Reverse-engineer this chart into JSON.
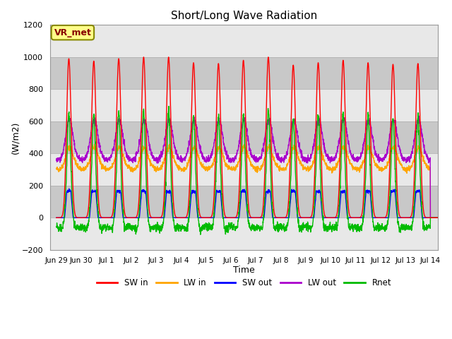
{
  "title": "Short/Long Wave Radiation",
  "xlabel": "Time",
  "ylabel": "(W/m2)",
  "ylim": [
    -200,
    1200
  ],
  "background_color": "#ffffff",
  "plot_bg_color": "#d8d8d8",
  "band_color_light": "#e8e8e8",
  "band_color_dark": "#c8c8c8",
  "annotation_text": "VR_met",
  "annotation_bg": "#ffff88",
  "annotation_border": "#888800",
  "series": {
    "SW_in": {
      "color": "#ff0000",
      "label": "SW in",
      "lw": 1.0
    },
    "LW_in": {
      "color": "#ffa500",
      "label": "LW in",
      "lw": 1.0
    },
    "SW_out": {
      "color": "#0000ff",
      "label": "SW out",
      "lw": 1.0
    },
    "LW_out": {
      "color": "#aa00cc",
      "label": "LW out",
      "lw": 1.0
    },
    "Rnet": {
      "color": "#00bb00",
      "label": "Rnet",
      "lw": 1.0
    }
  },
  "tick_labels": [
    "Jun 29",
    "Jun 30",
    "Jul 1",
    "Jul 2",
    "Jul 3",
    "Jul 4",
    "Jul 5",
    "Jul 6",
    "Jul 7",
    "Jul 8",
    "Jul 9",
    "Jul 10",
    "Jul 11",
    "Jul 12",
    "Jul 13",
    "Jul 14"
  ],
  "tick_positions": [
    0,
    1,
    2,
    3,
    4,
    5,
    6,
    7,
    8,
    9,
    10,
    11,
    12,
    13,
    14,
    15
  ],
  "yticks": [
    -200,
    0,
    200,
    400,
    600,
    800,
    1000,
    1200
  ]
}
